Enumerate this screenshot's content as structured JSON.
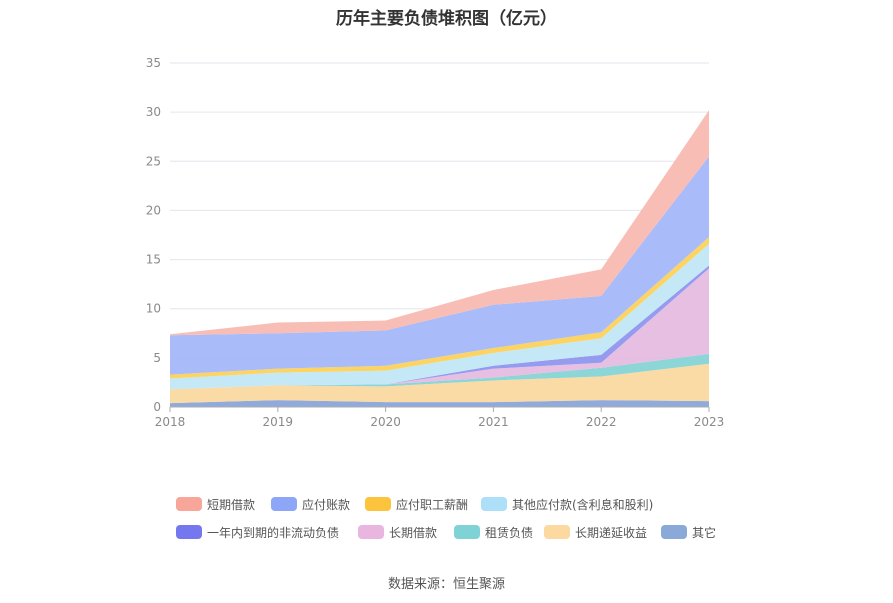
{
  "chart_data": {
    "type": "area",
    "stacked": true,
    "title": "历年主要负债堆积图（亿元）",
    "categories": [
      "2018",
      "2019",
      "2020",
      "2021",
      "2022",
      "2023"
    ],
    "y_ticks": [
      "0",
      "5",
      "10",
      "15",
      "20",
      "25",
      "30",
      "35"
    ],
    "ylim": [
      0,
      35
    ],
    "grid": true,
    "legend_position": "bottom",
    "series": [
      {
        "name": "其它",
        "color": "#8aa7d9",
        "values": [
          0.4,
          0.7,
          0.5,
          0.5,
          0.7,
          0.6
        ]
      },
      {
        "name": "长期递延收益",
        "color": "#fbd9a0",
        "values": [
          1.4,
          1.5,
          1.6,
          2.2,
          2.4,
          3.8
        ]
      },
      {
        "name": "租赁负债",
        "color": "#87d4d6",
        "values": [
          0.0,
          0.0,
          0.2,
          0.3,
          0.9,
          1.0
        ]
      },
      {
        "name": "长期借款",
        "color": "#e6bce0",
        "values": [
          0.0,
          0.0,
          0.0,
          0.9,
          0.5,
          8.7
        ]
      },
      {
        "name": "一年内到期的非流动负债",
        "color": "#8f96ee",
        "values": [
          0.0,
          0.0,
          0.0,
          0.3,
          0.8,
          0.3
        ]
      },
      {
        "name": "其他应付款(含利息和股利)",
        "color": "#c2e7f7",
        "values": [
          1.1,
          1.3,
          1.4,
          1.3,
          1.7,
          2.2
        ]
      },
      {
        "name": "应付职工薪酬",
        "color": "#fcd25c",
        "values": [
          0.4,
          0.4,
          0.5,
          0.5,
          0.6,
          0.7
        ]
      },
      {
        "name": "应付账款",
        "color": "#a4b7f8",
        "values": [
          4.0,
          3.6,
          3.6,
          4.4,
          3.7,
          8.2
        ]
      },
      {
        "name": "短期借款",
        "color": "#f8bab2",
        "values": [
          0.1,
          1.1,
          1.0,
          1.5,
          2.7,
          4.7
        ]
      }
    ]
  },
  "legend": {
    "items": [
      {
        "label": "短期借款",
        "color": "#f8a59a"
      },
      {
        "label": "应付账款",
        "color": "#8ea6f7"
      },
      {
        "label": "应付职工薪酬",
        "color": "#fcc43d"
      },
      {
        "label": "其他应付款(含利息和股利)",
        "color": "#ade0f8"
      },
      {
        "label": "一年内到期的非流动负债",
        "color": "#7577ee"
      },
      {
        "label": "长期借款",
        "color": "#e8b6df"
      },
      {
        "label": "租赁负债",
        "color": "#7fd3d6"
      },
      {
        "label": "长期递延收益",
        "color": "#fcd9a0"
      },
      {
        "label": "其它",
        "color": "#8aa8d8"
      }
    ]
  },
  "source": "数据来源：恒生聚源"
}
